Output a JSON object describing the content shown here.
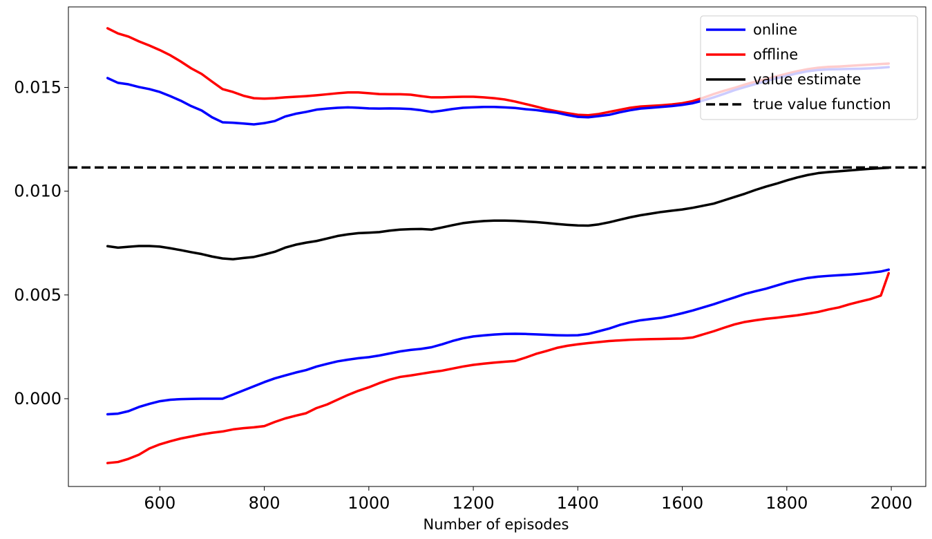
{
  "chart_data": {
    "type": "line",
    "title": "",
    "xlabel": "Number of episodes",
    "ylabel": "",
    "xlim": [
      425,
      2066
    ],
    "ylim": [
      -0.00423,
      0.01888
    ],
    "xticks": [
      600,
      800,
      1000,
      1200,
      1400,
      1600,
      1800,
      2000
    ],
    "xtick_labels": [
      "600",
      "800",
      "1000",
      "1200",
      "1400",
      "1600",
      "1800",
      "2000"
    ],
    "yticks": [
      0.0,
      0.005,
      0.01,
      0.015
    ],
    "ytick_labels": [
      "0.000",
      "0.005",
      "0.010",
      "0.015"
    ],
    "grid": false,
    "legend_position": "top-right",
    "legend": [
      "online",
      "offline",
      "value estimate",
      "true value function"
    ],
    "x": [
      500,
      520,
      540,
      560,
      580,
      600,
      620,
      640,
      660,
      680,
      700,
      720,
      740,
      760,
      780,
      800,
      820,
      840,
      860,
      880,
      900,
      920,
      940,
      960,
      980,
      1000,
      1020,
      1040,
      1060,
      1080,
      1100,
      1120,
      1140,
      1160,
      1180,
      1200,
      1220,
      1240,
      1260,
      1280,
      1300,
      1320,
      1340,
      1360,
      1380,
      1400,
      1420,
      1440,
      1460,
      1480,
      1500,
      1520,
      1540,
      1560,
      1580,
      1600,
      1620,
      1640,
      1660,
      1680,
      1700,
      1720,
      1740,
      1760,
      1780,
      1800,
      1820,
      1840,
      1860,
      1880,
      1900,
      1920,
      1940,
      1960,
      1980,
      1995
    ],
    "series": [
      {
        "name": "online",
        "color": "#0000ff",
        "upper": [
          0.01545,
          0.01522,
          0.01515,
          0.01502,
          0.01492,
          0.01478,
          0.01458,
          0.01436,
          0.0141,
          0.01389,
          0.01356,
          0.01332,
          0.0133,
          0.01326,
          0.01322,
          0.01328,
          0.01338,
          0.0136,
          0.01373,
          0.01382,
          0.01393,
          0.01398,
          0.01402,
          0.01404,
          0.01402,
          0.01399,
          0.01398,
          0.01399,
          0.01398,
          0.01396,
          0.0139,
          0.01382,
          0.01388,
          0.01396,
          0.01402,
          0.01404,
          0.01406,
          0.01406,
          0.01404,
          0.01401,
          0.01395,
          0.01391,
          0.01384,
          0.01378,
          0.01367,
          0.01358,
          0.01356,
          0.01362,
          0.01368,
          0.0138,
          0.0139,
          0.01398,
          0.01402,
          0.01406,
          0.0141,
          0.01416,
          0.01424,
          0.01437,
          0.01452,
          0.01469,
          0.01487,
          0.01502,
          0.01516,
          0.0153,
          0.01544,
          0.01556,
          0.01568,
          0.01578,
          0.01584,
          0.01587,
          0.01588,
          0.01589,
          0.0159,
          0.01592,
          0.01595,
          0.01598
        ],
        "lower": [
          -0.00075,
          -0.00072,
          -0.0006,
          -0.0004,
          -0.00025,
          -0.00012,
          -5e-05,
          -2e-05,
          -1e-05,
          0.0,
          0.0,
          0.0,
          0.0002,
          0.0004,
          0.0006,
          0.0008,
          0.00098,
          0.00112,
          0.00126,
          0.00138,
          0.00155,
          0.00168,
          0.0018,
          0.00188,
          0.00195,
          0.002,
          0.00208,
          0.00218,
          0.00228,
          0.00235,
          0.0024,
          0.00248,
          0.00262,
          0.00278,
          0.00291,
          0.003,
          0.00305,
          0.00309,
          0.00312,
          0.00313,
          0.00312,
          0.0031,
          0.00308,
          0.00306,
          0.00305,
          0.00306,
          0.00312,
          0.00325,
          0.00338,
          0.00355,
          0.00368,
          0.00378,
          0.00384,
          0.0039,
          0.004,
          0.00412,
          0.00425,
          0.0044,
          0.00455,
          0.00472,
          0.00488,
          0.00505,
          0.00518,
          0.0053,
          0.00545,
          0.0056,
          0.00572,
          0.00582,
          0.00588,
          0.00592,
          0.00595,
          0.00598,
          0.00602,
          0.00607,
          0.00613,
          0.00622
        ]
      },
      {
        "name": "offline",
        "color": "#ff0000",
        "upper": [
          0.01785,
          0.0176,
          0.01745,
          0.01722,
          0.01702,
          0.0168,
          0.01655,
          0.01625,
          0.01592,
          0.01565,
          0.01528,
          0.01492,
          0.01478,
          0.0146,
          0.01448,
          0.01446,
          0.01448,
          0.01452,
          0.01455,
          0.01458,
          0.01462,
          0.01467,
          0.01472,
          0.01476,
          0.01476,
          0.01472,
          0.01468,
          0.01467,
          0.01467,
          0.01465,
          0.01458,
          0.01452,
          0.01452,
          0.01454,
          0.01455,
          0.01455,
          0.01452,
          0.01448,
          0.01442,
          0.01432,
          0.0142,
          0.01408,
          0.01395,
          0.01385,
          0.01376,
          0.01368,
          0.01366,
          0.01372,
          0.01382,
          0.01392,
          0.01402,
          0.01408,
          0.01411,
          0.01414,
          0.01418,
          0.01424,
          0.01434,
          0.0145,
          0.01468,
          0.01484,
          0.01498,
          0.01514,
          0.01528,
          0.0154,
          0.01553,
          0.01566,
          0.01578,
          0.01588,
          0.01595,
          0.01599,
          0.01601,
          0.01604,
          0.01607,
          0.0161,
          0.01613,
          0.01615
        ],
        "lower": [
          -0.0031,
          -0.00305,
          -0.0029,
          -0.0027,
          -0.0024,
          -0.0022,
          -0.00205,
          -0.00192,
          -0.00182,
          -0.00172,
          -0.00164,
          -0.00158,
          -0.00148,
          -0.00142,
          -0.00138,
          -0.00132,
          -0.00112,
          -0.00095,
          -0.00082,
          -0.0007,
          -0.00045,
          -0.00028,
          -5e-05,
          0.00018,
          0.00038,
          0.00055,
          0.00075,
          0.00092,
          0.00105,
          0.00112,
          0.0012,
          0.00128,
          0.00135,
          0.00145,
          0.00155,
          0.00163,
          0.00169,
          0.00174,
          0.00178,
          0.00182,
          0.00198,
          0.00216,
          0.0023,
          0.00245,
          0.00255,
          0.00262,
          0.00268,
          0.00273,
          0.00278,
          0.00281,
          0.00284,
          0.00286,
          0.00287,
          0.00288,
          0.00289,
          0.0029,
          0.00295,
          0.0031,
          0.00325,
          0.00342,
          0.00358,
          0.0037,
          0.00378,
          0.00385,
          0.0039,
          0.00396,
          0.00402,
          0.0041,
          0.00418,
          0.0043,
          0.0044,
          0.00455,
          0.00468,
          0.0048,
          0.00497,
          0.00605
        ]
      },
      {
        "name": "value estimate",
        "color": "#000000",
        "values": [
          0.00735,
          0.00728,
          0.00732,
          0.00736,
          0.00736,
          0.00733,
          0.00725,
          0.00716,
          0.00706,
          0.00697,
          0.00685,
          0.00676,
          0.00672,
          0.00678,
          0.00683,
          0.00695,
          0.00708,
          0.00728,
          0.00742,
          0.00752,
          0.0076,
          0.00772,
          0.00784,
          0.00792,
          0.00798,
          0.008,
          0.00803,
          0.0081,
          0.00815,
          0.00817,
          0.00818,
          0.00815,
          0.00825,
          0.00836,
          0.00846,
          0.00852,
          0.00856,
          0.00858,
          0.00858,
          0.00857,
          0.00854,
          0.00851,
          0.00847,
          0.00842,
          0.00838,
          0.00835,
          0.00834,
          0.0084,
          0.0085,
          0.00862,
          0.00874,
          0.00884,
          0.00892,
          0.009,
          0.00906,
          0.00912,
          0.0092,
          0.0093,
          0.0094,
          0.00956,
          0.00972,
          0.00988,
          0.01006,
          0.01022,
          0.01036,
          0.01052,
          0.01066,
          0.01078,
          0.01087,
          0.01092,
          0.01096,
          0.011,
          0.01104,
          0.01108,
          0.01111,
          0.01113
        ]
      },
      {
        "name": "true value function",
        "color": "#000000",
        "style": "dashed",
        "constant": 0.01114
      }
    ]
  }
}
